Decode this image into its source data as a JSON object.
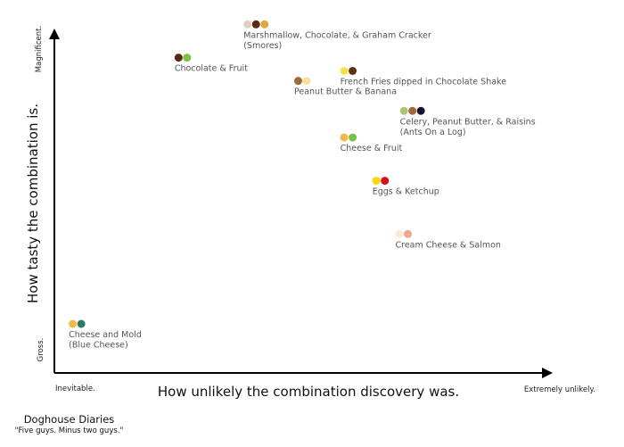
{
  "chart_data": {
    "type": "scatter",
    "title": "",
    "xlabel": "How unlikely the combination discovery was.",
    "ylabel": "How tasty the combination is.",
    "x_ticks": [
      {
        "x": 0,
        "label": "Inevitable."
      },
      {
        "x": 10,
        "label": "Extremely unlikely."
      }
    ],
    "y_ticks": [
      {
        "y": 0,
        "label": "Gross."
      },
      {
        "y": 10,
        "label": "Magnificent."
      }
    ],
    "xlim": [
      0,
      10
    ],
    "ylim": [
      0,
      10
    ],
    "grid": false,
    "points": [
      {
        "label": "Marshmallow, Chocolate, & Graham Cracker (Smores)",
        "x": 4.2,
        "y": 10.1,
        "colors": [
          "#e3cfc0",
          "#5a2b12",
          "#e5a440"
        ]
      },
      {
        "label": "Chocolate & Fruit",
        "x": 2.7,
        "y": 9.1,
        "colors": [
          "#5a2b12",
          "#7cc242"
        ]
      },
      {
        "label": "French Fries dipped in Chocolate Shake",
        "x": 6.3,
        "y": 8.7,
        "colors": [
          "#fde047",
          "#5a3512"
        ]
      },
      {
        "label": "Peanut Butter & Banana",
        "x": 5.3,
        "y": 8.4,
        "colors": [
          "#a06a3a",
          "#f8df9a"
        ]
      },
      {
        "label": "Celery, Peanut Butter, & Raisins (Ants On a Log)",
        "x": 7.6,
        "y": 7.5,
        "colors": [
          "#a8c66c",
          "#a0683a",
          "#1a0f2d"
        ]
      },
      {
        "label": "Cheese & Fruit",
        "x": 6.3,
        "y": 6.7,
        "colors": [
          "#f0b94a",
          "#7cc242"
        ]
      },
      {
        "label": "Eggs & Ketchup",
        "x": 7.0,
        "y": 5.4,
        "colors": [
          "#ffd700",
          "#d40f1f"
        ]
      },
      {
        "label": "Cream Cheese & Salmon",
        "x": 7.5,
        "y": 3.8,
        "colors": [
          "#fbe9d8",
          "#f0a590"
        ]
      },
      {
        "label": "Cheese and Mold (Blue Cheese)",
        "x": 0.4,
        "y": 1.1,
        "colors": [
          "#f0b94a",
          "#2f7a63"
        ]
      }
    ]
  },
  "credit": {
    "name": "Doghouse Diaries",
    "tagline": "\"Five guys. Minus two guys.\""
  },
  "colors": {
    "axis": "#000000",
    "text": "#555555"
  }
}
